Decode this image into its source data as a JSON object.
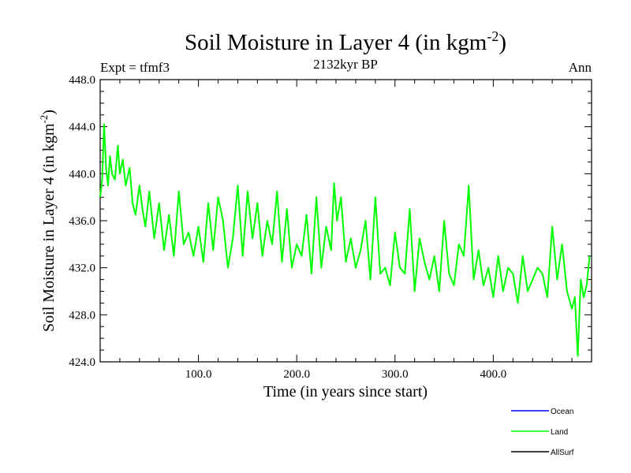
{
  "chart_data": {
    "type": "line",
    "title_main": "Soil Moisture in Layer 4 (in kgm",
    "title_sup": "-2",
    "title_close": ")",
    "subtitle_left": "Expt = tfmf3",
    "subtitle_center": "2132kyr BP",
    "subtitle_right": "Ann",
    "xlabel": "Time (in years since start)",
    "ylabel_main": "Soil Moisture in Layer 4 (in kgm",
    "ylabel_sup": "-2",
    "ylabel_close": ")",
    "xlim": [
      0,
      500
    ],
    "ylim": [
      424,
      448
    ],
    "xticks": [
      {
        "value": 100,
        "label": "100.0"
      },
      {
        "value": 200,
        "label": "200.0"
      },
      {
        "value": 300,
        "label": "300.0"
      },
      {
        "value": 400,
        "label": "400.0"
      }
    ],
    "yticks": [
      {
        "value": 424,
        "label": "424.0"
      },
      {
        "value": 428,
        "label": "428.0"
      },
      {
        "value": 432,
        "label": "432.0"
      },
      {
        "value": 436,
        "label": "436.0"
      },
      {
        "value": 440,
        "label": "440.0"
      },
      {
        "value": 444,
        "label": "444.0"
      },
      {
        "value": 448,
        "label": "448.0"
      }
    ],
    "legend": [
      {
        "name": "Ocean",
        "color": "#0000ff"
      },
      {
        "name": "Land",
        "color": "#00ff00"
      },
      {
        "name": "AllSurf",
        "color": "#000000"
      }
    ],
    "series": [
      {
        "name": "Land",
        "color": "#00ff00",
        "x": [
          0,
          2,
          4,
          6,
          8,
          10,
          12,
          15,
          18,
          20,
          23,
          26,
          30,
          33,
          36,
          40,
          43,
          46,
          50,
          55,
          60,
          65,
          70,
          75,
          80,
          85,
          90,
          95,
          100,
          105,
          110,
          115,
          120,
          125,
          130,
          135,
          140,
          145,
          150,
          155,
          160,
          165,
          170,
          175,
          180,
          185,
          190,
          195,
          200,
          205,
          210,
          215,
          220,
          225,
          230,
          235,
          238,
          241,
          245,
          250,
          255,
          260,
          265,
          270,
          275,
          280,
          285,
          290,
          295,
          300,
          305,
          310,
          315,
          320,
          325,
          330,
          335,
          340,
          345,
          350,
          355,
          360,
          365,
          370,
          375,
          380,
          385,
          390,
          395,
          400,
          405,
          410,
          415,
          420,
          425,
          430,
          435,
          440,
          445,
          450,
          455,
          460,
          465,
          470,
          475,
          480,
          483,
          486,
          489,
          492,
          495,
          498
        ],
        "values": [
          438.0,
          439.5,
          444.2,
          440.5,
          439.0,
          441.5,
          440.0,
          439.5,
          442.4,
          440.0,
          441.2,
          439.0,
          440.5,
          437.5,
          436.5,
          439.0,
          437.0,
          435.5,
          438.5,
          434.5,
          437.5,
          433.5,
          436.5,
          433.0,
          438.5,
          434.0,
          435.0,
          433.0,
          435.5,
          432.5,
          437.5,
          433.5,
          438.0,
          436.0,
          432.0,
          434.5,
          439.0,
          433.0,
          438.5,
          434.5,
          437.5,
          433.0,
          436.0,
          434.0,
          438.5,
          432.5,
          437.0,
          432.0,
          434.0,
          433.0,
          436.5,
          431.5,
          438.0,
          432.0,
          435.5,
          433.5,
          439.2,
          436.0,
          438.0,
          432.5,
          434.5,
          432.0,
          433.5,
          436.0,
          431.0,
          438.0,
          431.5,
          432.0,
          430.5,
          435.0,
          432.0,
          431.5,
          437.0,
          430.0,
          434.5,
          432.5,
          431.0,
          433.0,
          430.0,
          436.0,
          431.5,
          430.5,
          434.0,
          433.0,
          439.0,
          431.0,
          433.5,
          430.5,
          432.0,
          429.5,
          433.0,
          430.0,
          432.0,
          431.5,
          429.0,
          433.0,
          430.0,
          431.0,
          432.0,
          431.5,
          429.5,
          435.5,
          431.0,
          434.0,
          430.0,
          428.5,
          429.5,
          424.5,
          431.0,
          429.5,
          430.5,
          433.0
        ]
      }
    ]
  }
}
